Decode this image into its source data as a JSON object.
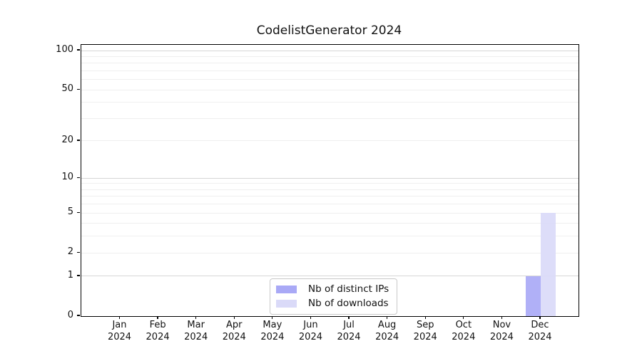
{
  "figure": {
    "background": "#ffffff"
  },
  "chart_data": {
    "type": "bar",
    "title": "CodelistGenerator 2024",
    "categories": [
      "Jan 2024",
      "Feb 2024",
      "Mar 2024",
      "Apr 2024",
      "May 2024",
      "Jun 2024",
      "Jul 2024",
      "Aug 2024",
      "Sep 2024",
      "Oct 2024",
      "Nov 2024",
      "Dec 2024"
    ],
    "series": [
      {
        "name": "Nb of distinct IPs",
        "color": "#a9a9f6",
        "values": [
          0,
          0,
          0,
          0,
          0,
          0,
          0,
          0,
          0,
          0,
          0,
          1
        ]
      },
      {
        "name": "Nb of downloads",
        "color": "#dadaf8",
        "values": [
          0,
          0,
          0,
          0,
          0,
          0,
          0,
          0,
          0,
          0,
          0,
          5
        ]
      }
    ],
    "xlabel": "",
    "ylabel": "",
    "y_scale": "log1p",
    "y_ticks": [
      100,
      50,
      20,
      10,
      5,
      2,
      1,
      0
    ],
    "ylim": [
      0,
      100
    ],
    "grid": {
      "on": true,
      "major_values": [
        1,
        10,
        100
      ],
      "minor_values": [
        2,
        3,
        4,
        5,
        6,
        7,
        8,
        9,
        20,
        30,
        40,
        50,
        60,
        70,
        80,
        90
      ],
      "major_color": "#d6d6d6",
      "minor_color": "#efefef"
    },
    "legend": {
      "position": "lower center",
      "entries": [
        "Nb of distinct IPs",
        "Nb of downloads"
      ]
    },
    "colors": {
      "axis": "#000000",
      "text": "#111111"
    }
  }
}
